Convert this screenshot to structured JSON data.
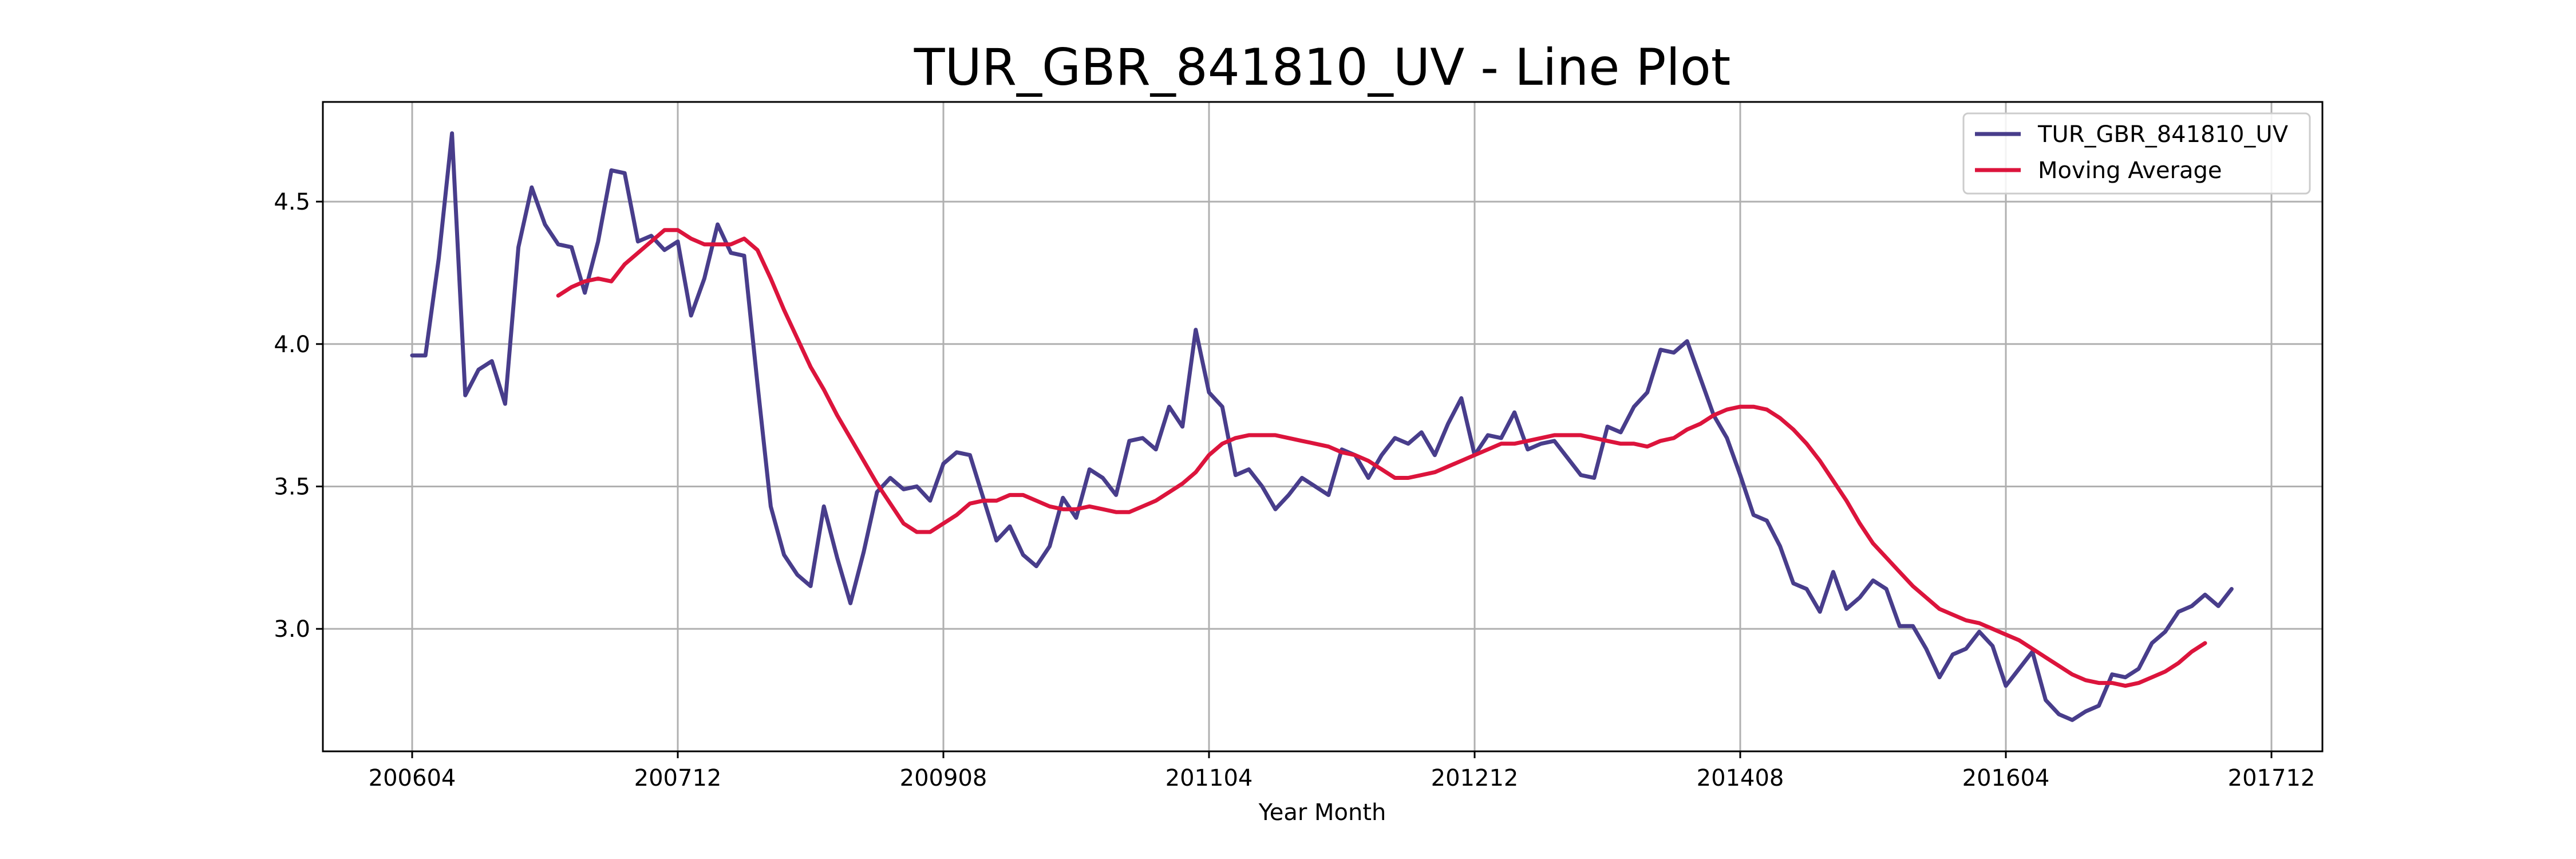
{
  "chart_data": {
    "type": "line",
    "title": "TUR_GBR_841810_UV - Line Plot",
    "xlabel": "Year Month",
    "ylabel": "",
    "x_ticks": [
      "200604",
      "200712",
      "200908",
      "201104",
      "201212",
      "201408",
      "201604",
      "201712"
    ],
    "y_ticks": [
      "3.0",
      "3.5",
      "4.0",
      "4.5"
    ],
    "ylim": [
      2.57,
      4.85
    ],
    "x_start": "2006-04",
    "grid": true,
    "legend_position": "top-right",
    "series": [
      {
        "name": "TUR_GBR_841810_UV",
        "color": "#483D8B",
        "values": [
          3.96,
          3.96,
          4.3,
          4.74,
          3.82,
          3.91,
          3.94,
          3.79,
          4.34,
          4.55,
          4.42,
          4.35,
          4.34,
          4.18,
          4.36,
          4.61,
          4.6,
          4.36,
          4.38,
          4.33,
          4.36,
          4.1,
          4.23,
          4.42,
          4.32,
          4.31,
          3.86,
          3.43,
          3.26,
          3.19,
          3.15,
          3.43,
          3.25,
          3.09,
          3.27,
          3.48,
          3.53,
          3.49,
          3.5,
          3.45,
          3.58,
          3.62,
          3.61,
          3.46,
          3.31,
          3.36,
          3.26,
          3.22,
          3.29,
          3.46,
          3.39,
          3.56,
          3.53,
          3.47,
          3.66,
          3.67,
          3.63,
          3.78,
          3.71,
          4.05,
          3.83,
          3.78,
          3.54,
          3.56,
          3.5,
          3.42,
          3.47,
          3.53,
          3.5,
          3.47,
          3.63,
          3.61,
          3.53,
          3.61,
          3.67,
          3.65,
          3.69,
          3.61,
          3.72,
          3.81,
          3.61,
          3.68,
          3.67,
          3.76,
          3.63,
          3.65,
          3.66,
          3.6,
          3.54,
          3.53,
          3.71,
          3.69,
          3.78,
          3.83,
          3.98,
          3.97,
          4.01,
          3.88,
          3.75,
          3.67,
          3.54,
          3.4,
          3.38,
          3.29,
          3.16,
          3.14,
          3.06,
          3.2,
          3.07,
          3.11,
          3.17,
          3.14,
          3.01,
          3.01,
          2.93,
          2.83,
          2.91,
          2.93,
          2.99,
          2.94,
          2.8,
          2.86,
          2.92,
          2.75,
          2.7,
          2.68,
          2.71,
          2.73,
          2.84,
          2.83,
          2.86,
          2.95,
          2.99,
          3.06,
          3.08,
          3.12,
          3.08,
          3.14
        ]
      },
      {
        "name": "Moving Average",
        "color": "#DC143C",
        "start_index": 11,
        "values": [
          4.17,
          4.2,
          4.22,
          4.23,
          4.22,
          4.28,
          4.32,
          4.36,
          4.4,
          4.4,
          4.37,
          4.35,
          4.35,
          4.35,
          4.37,
          4.33,
          4.23,
          4.12,
          4.02,
          3.92,
          3.84,
          3.75,
          3.67,
          3.59,
          3.51,
          3.44,
          3.37,
          3.34,
          3.34,
          3.37,
          3.4,
          3.44,
          3.45,
          3.45,
          3.47,
          3.47,
          3.45,
          3.43,
          3.42,
          3.42,
          3.43,
          3.42,
          3.41,
          3.41,
          3.43,
          3.45,
          3.48,
          3.51,
          3.55,
          3.61,
          3.65,
          3.67,
          3.68,
          3.68,
          3.68,
          3.67,
          3.66,
          3.65,
          3.64,
          3.62,
          3.61,
          3.59,
          3.56,
          3.53,
          3.53,
          3.54,
          3.55,
          3.57,
          3.59,
          3.61,
          3.63,
          3.65,
          3.65,
          3.66,
          3.67,
          3.68,
          3.68,
          3.68,
          3.67,
          3.66,
          3.65,
          3.65,
          3.64,
          3.66,
          3.67,
          3.7,
          3.72,
          3.75,
          3.77,
          3.78,
          3.78,
          3.77,
          3.74,
          3.7,
          3.65,
          3.59,
          3.52,
          3.45,
          3.37,
          3.3,
          3.25,
          3.2,
          3.15,
          3.11,
          3.07,
          3.05,
          3.03,
          3.02,
          3.0,
          2.98,
          2.96,
          2.93,
          2.9,
          2.87,
          2.84,
          2.82,
          2.81,
          2.81,
          2.8,
          2.81,
          2.83,
          2.85,
          2.88,
          2.92,
          2.95
        ]
      }
    ]
  }
}
